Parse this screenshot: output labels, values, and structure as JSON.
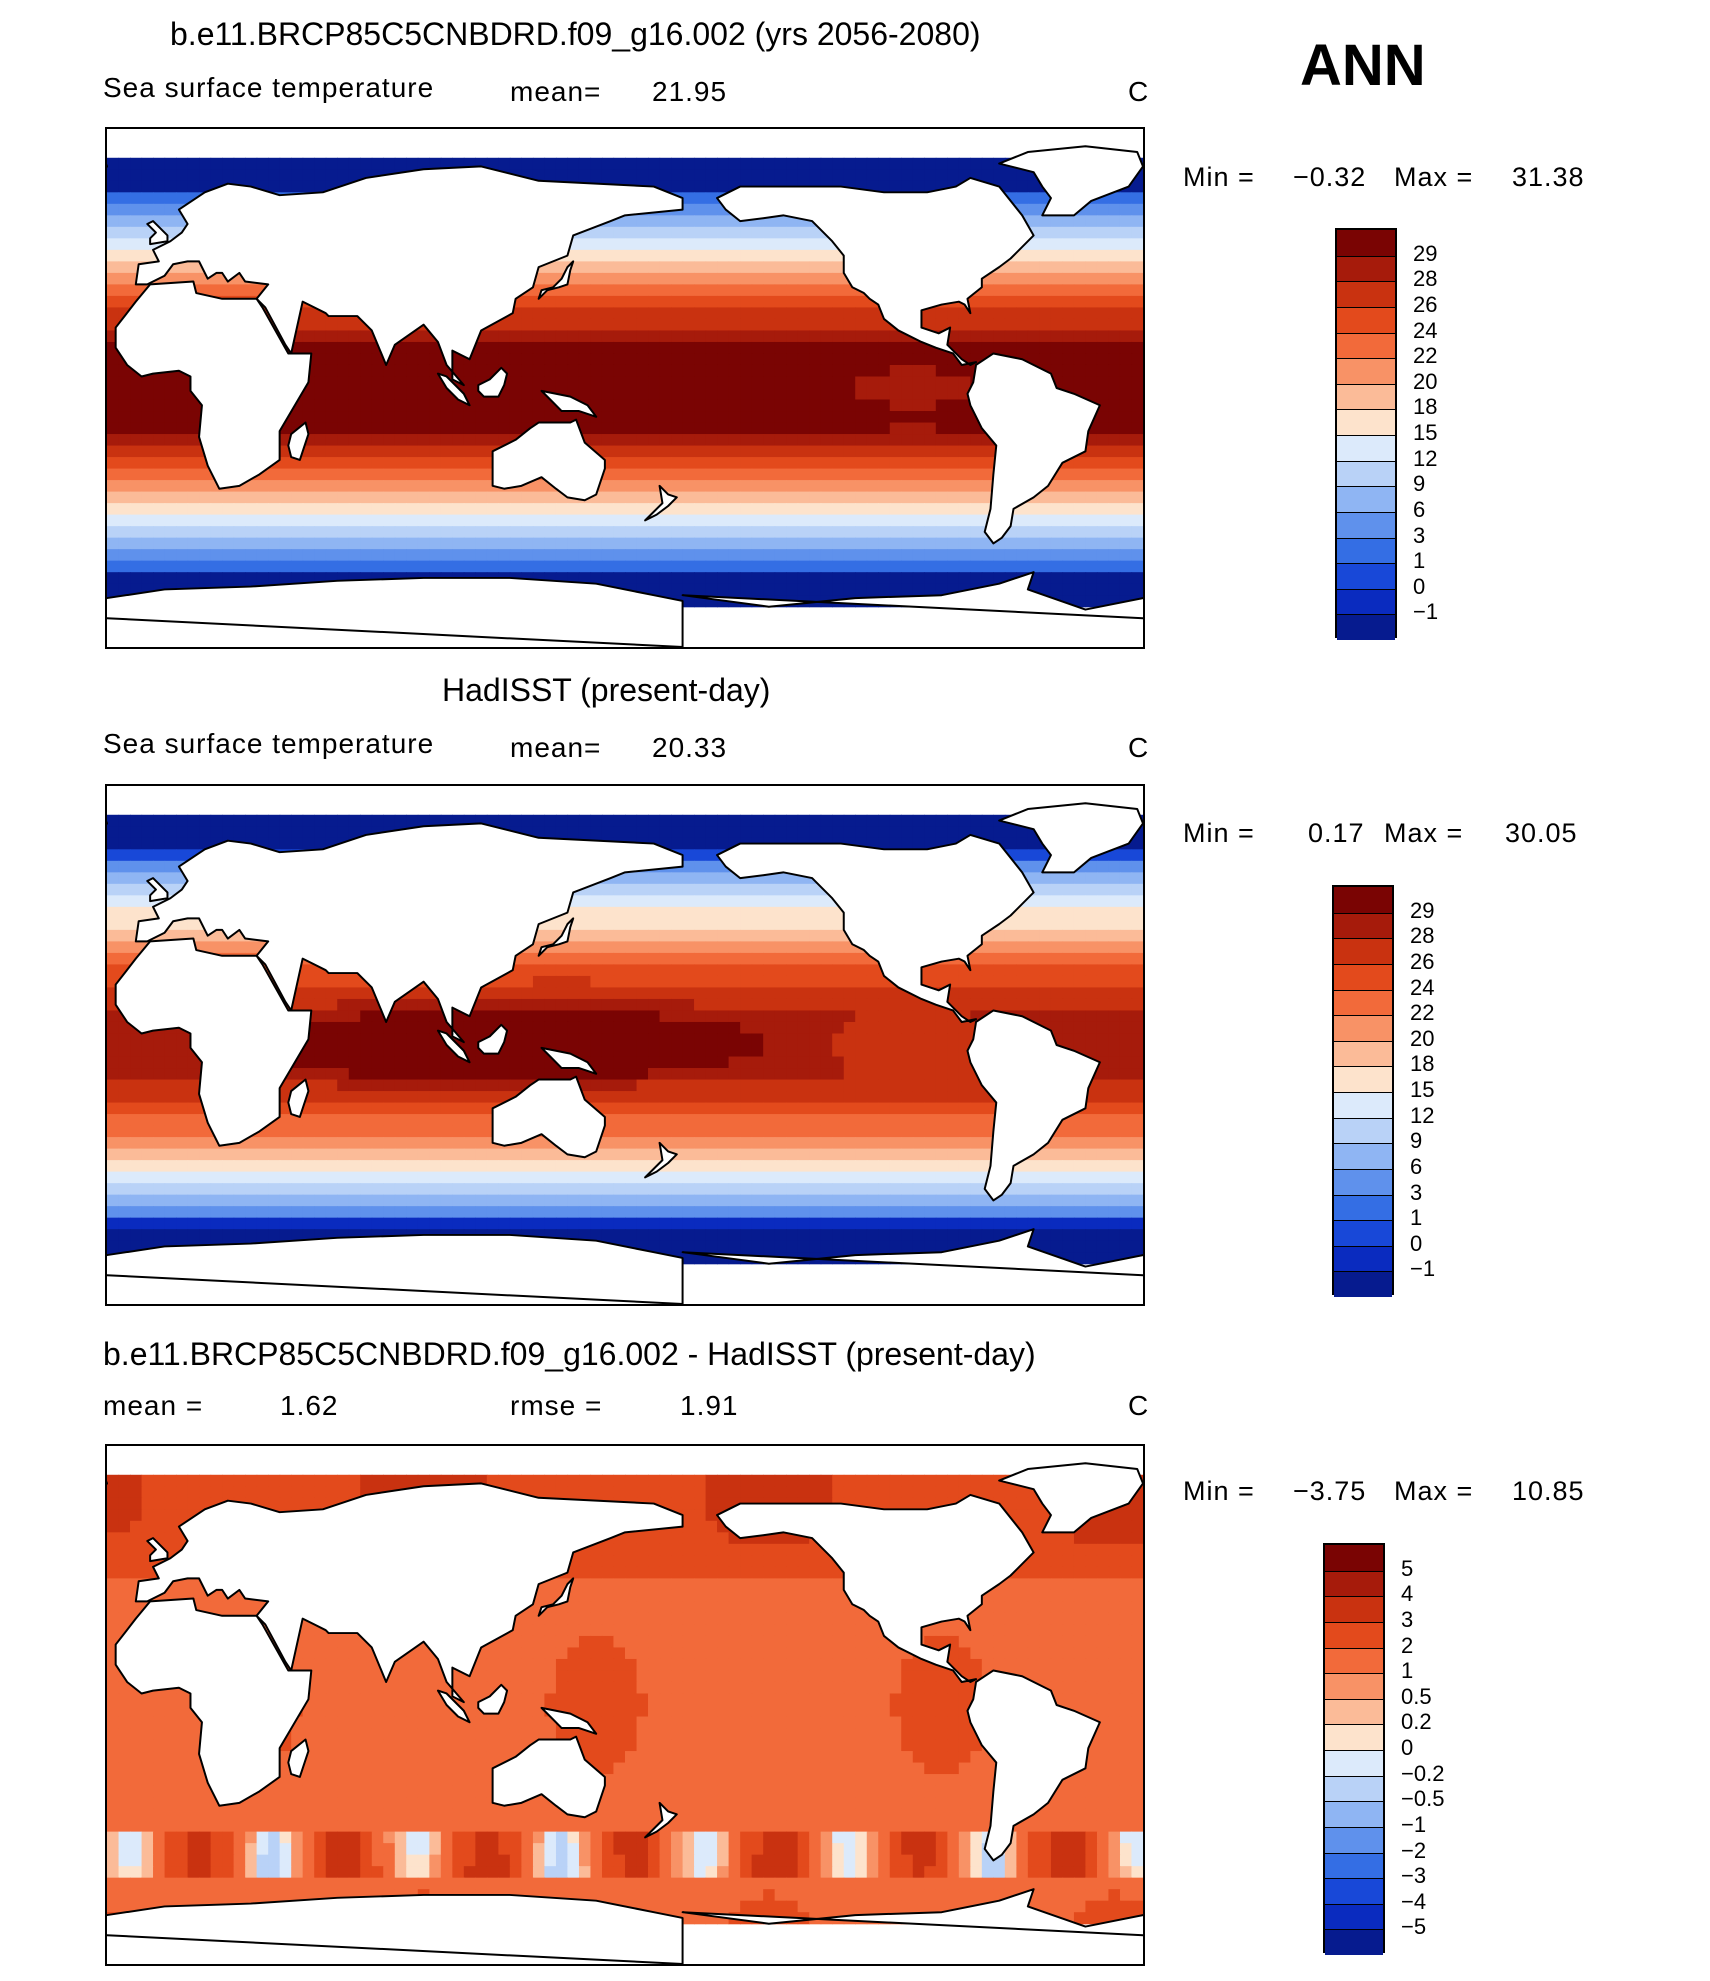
{
  "top_right_label": "ANN",
  "panels": [
    {
      "title": "b.e11.BRCP85C5CNBDRD.f09_g16.002 (yrs 2056-2080)",
      "left_text": "Sea surface temperature",
      "stat1_label": "mean=",
      "stat1_value": "21.95",
      "stat2_label": "",
      "stat2_value": "",
      "units": "C",
      "min_label": "Min =",
      "min_value": "−0.32",
      "max_label": "Max =",
      "max_value": "31.38",
      "colorbar_labels": [
        "29",
        "28",
        "26",
        "24",
        "22",
        "20",
        "18",
        "15",
        "12",
        "9",
        "6",
        "3",
        "1",
        "0",
        "−1"
      ]
    },
    {
      "title": "HadISST (present-day)",
      "left_text": "Sea surface temperature",
      "stat1_label": "mean=",
      "stat1_value": "20.33",
      "stat2_label": "",
      "stat2_value": "",
      "units": "C",
      "min_label": "Min =",
      "min_value": "0.17",
      "max_label": "Max =",
      "max_value": "30.05",
      "colorbar_labels": [
        "29",
        "28",
        "26",
        "24",
        "22",
        "20",
        "18",
        "15",
        "12",
        "9",
        "6",
        "3",
        "1",
        "0",
        "−1"
      ]
    },
    {
      "title": "b.e11.BRCP85C5CNBDRD.f09_g16.002 - HadISST (present-day)",
      "left_text": "",
      "stat1_label": "mean =",
      "stat1_value": "1.62",
      "stat2_label": "rmse =",
      "stat2_value": "1.91",
      "units": "C",
      "min_label": "Min =",
      "min_value": "−3.75",
      "max_label": "Max =",
      "max_value": "10.85",
      "colorbar_labels": [
        "5",
        "4",
        "3",
        "2",
        "1",
        "0.5",
        "0.2",
        "0",
        "−0.2",
        "−0.5",
        "−1",
        "−2",
        "−3",
        "−4",
        "−5"
      ]
    }
  ],
  "colors": {
    "sst_palette": [
      "#7a0403",
      "#a61b0b",
      "#c93210",
      "#e34a1c",
      "#f26a3a",
      "#f89266",
      "#fbbb98",
      "#fde3cc",
      "#dceafb",
      "#b9d2f7",
      "#8fb5f3",
      "#5f91ec",
      "#346ee4",
      "#1848d8",
      "#0a2bbf",
      "#061b8f"
    ],
    "diff_palette": [
      "#7a0403",
      "#a61b0b",
      "#c93210",
      "#e34a1c",
      "#f26a3a",
      "#f89266",
      "#fbbb98",
      "#fde3cc",
      "#dceafb",
      "#b9d2f7",
      "#8fb5f3",
      "#5f91ec",
      "#346ee4",
      "#1848d8",
      "#0a2bbf",
      "#061b8f"
    ],
    "land": "#ffffff",
    "coastline": "#000000"
  }
}
